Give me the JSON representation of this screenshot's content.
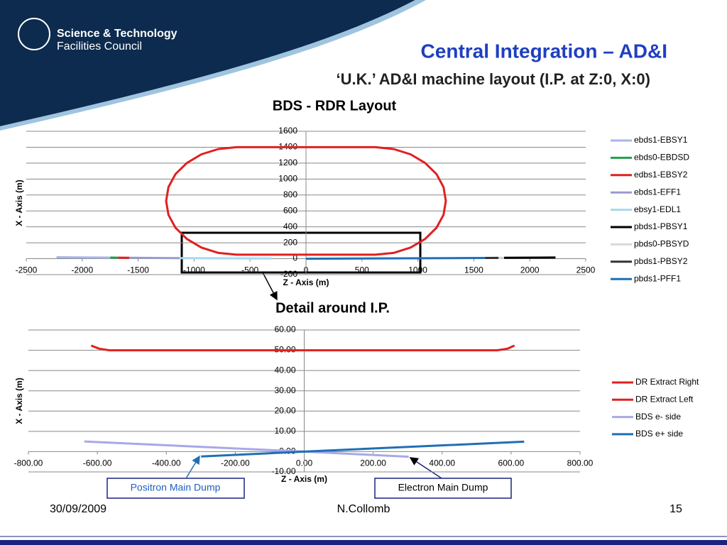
{
  "header": {
    "logo_line1": "Science & Technology",
    "logo_line2": "Facilities Council",
    "title": "Central Integration – AD&I",
    "subtitle": "‘U.K.’ AD&I machine layout (I.P. at Z:0, X:0)"
  },
  "chart_data": [
    {
      "type": "line",
      "title": "BDS - RDR Layout",
      "x_label": "Z - Axis (m)",
      "y_label": "X - Axis (m)",
      "xlim": [
        -2500,
        2500
      ],
      "xticks": [
        -2500,
        -2000,
        -1500,
        -1000,
        -500,
        0,
        500,
        1000,
        1500,
        2000,
        2500
      ],
      "ylim": [
        -200,
        1600
      ],
      "yticks": [
        -200,
        0,
        200,
        400,
        600,
        800,
        1000,
        1200,
        1400,
        1600
      ],
      "grid": true,
      "series": [
        {
          "name": "ebds1-EBSY1",
          "color": "#a8b4e8",
          "x": [
            -2230,
            -1750
          ],
          "values": [
            18,
            14
          ]
        },
        {
          "name": "ebds0-EBDSD",
          "color": "#20a050",
          "x": [
            -1750,
            -1680
          ],
          "values": [
            14,
            13
          ]
        },
        {
          "name": "edbs1-EBSY2",
          "color": "#e02020",
          "x": [
            -1680,
            -1580,
            null,
            -620,
            -783,
            -935,
            -1065,
            -1166,
            -1229,
            -1250,
            -1229,
            -1166,
            -1065,
            -935,
            -783,
            -620,
            620,
            783,
            935,
            1065,
            1166,
            1229,
            1250,
            1229,
            1166,
            1065,
            935,
            783,
            620,
            -620
          ],
          "values": [
            13,
            12,
            null,
            1400,
            1377,
            1310,
            1202,
            1063,
            900,
            725,
            550,
            388,
            248,
            140,
            73,
            50,
            50,
            73,
            140,
            248,
            388,
            550,
            725,
            900,
            1063,
            1202,
            1310,
            1377,
            1400,
            1400
          ]
        },
        {
          "name": "ebds1-EFF1",
          "color": "#9a9ad0",
          "x": [
            -1580,
            -1130
          ],
          "values": [
            12,
            8
          ]
        },
        {
          "name": "ebsy1-EDL1",
          "color": "#a8d8ec",
          "x": [
            -1130,
            -300
          ],
          "values": [
            8,
            3
          ]
        },
        {
          "name": "pbds1-PBSY1",
          "color": "#000000",
          "x": [
            1770,
            2230
          ],
          "values": [
            11,
            15
          ]
        },
        {
          "name": "pbds0-PBSYD",
          "color": "#d8d8d8",
          "x": [
            1720,
            1770
          ],
          "values": [
            10,
            11
          ]
        },
        {
          "name": "pbds1-PBSY2",
          "color": "#333333",
          "x": [
            1600,
            1720
          ],
          "values": [
            9,
            10
          ]
        },
        {
          "name": "pbds1-PFF1",
          "color": "#1f6fb5",
          "x": [
            0,
            1600
          ],
          "values": [
            0,
            9
          ]
        }
      ]
    },
    {
      "type": "line",
      "title": "Detail around I.P.",
      "x_label": "Z - Axis (m)",
      "y_label": "X - Axis (m)",
      "xlim": [
        -800,
        800
      ],
      "xticks": [
        {
          "value": -800,
          "label": "-800.00"
        },
        {
          "value": -600,
          "label": "-600.00"
        },
        {
          "value": -400,
          "label": "-400.00"
        },
        {
          "value": -200,
          "label": "-200.00"
        },
        {
          "value": 0,
          "label": "0.00"
        },
        {
          "value": 200,
          "label": "200.00"
        },
        {
          "value": 400,
          "label": "400.00"
        },
        {
          "value": 600,
          "label": "600.00"
        },
        {
          "value": 800,
          "label": "800.00"
        }
      ],
      "ylim": [
        -10,
        60
      ],
      "yticks": [
        {
          "value": -10,
          "label": "-10.00"
        },
        {
          "value": 0,
          "label": "0.00"
        },
        {
          "value": 10,
          "label": "10.00"
        },
        {
          "value": 20,
          "label": "20.00"
        },
        {
          "value": 30,
          "label": "30.00"
        },
        {
          "value": 40,
          "label": "40.00"
        },
        {
          "value": 50,
          "label": "50.00"
        },
        {
          "value": 60,
          "label": "60.00"
        }
      ],
      "grid": true,
      "series": [
        {
          "name": "DR Extract Right",
          "color": "#e02020",
          "x": [
            0,
            560,
            590,
            610
          ],
          "values": [
            50,
            50,
            50.8,
            52.3
          ]
        },
        {
          "name": "DR Extract Left",
          "color": "#e02020",
          "x": [
            -618,
            -595,
            -565,
            0
          ],
          "values": [
            52.3,
            50.8,
            50,
            50
          ]
        },
        {
          "name": "BDS e- side",
          "color": "#a8a8e8",
          "x": [
            -638,
            0,
            303
          ],
          "values": [
            5,
            0,
            -2.5
          ]
        },
        {
          "name": "BDS e+ side",
          "color": "#1f6fb5",
          "x": [
            -299,
            0,
            638
          ],
          "values": [
            -2.4,
            0,
            4.9
          ]
        }
      ]
    }
  ],
  "annotations": [
    "Positron Main Dump",
    "Electron Main Dump"
  ],
  "footer": {
    "date": "30/09/2009",
    "author": "N.Collomb",
    "page": "15"
  }
}
